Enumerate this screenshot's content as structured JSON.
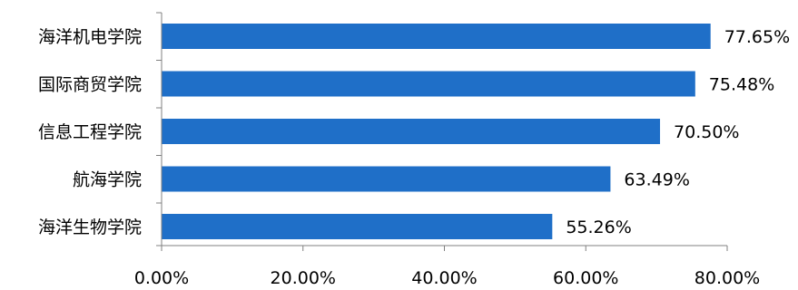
{
  "chart_data": {
    "type": "bar",
    "orientation": "horizontal",
    "categories": [
      "海洋机电学院",
      "国际商贸学院",
      "信息工程学院",
      "航海学院",
      "海洋生物学院"
    ],
    "values": [
      77.65,
      75.48,
      70.5,
      63.49,
      55.26
    ],
    "value_labels": [
      "77.65%",
      "75.48%",
      "70.50%",
      "63.49%",
      "55.26%"
    ],
    "x_ticks": [
      "0.00%",
      "20.00%",
      "40.00%",
      "60.00%",
      "80.00%"
    ],
    "xlim": [
      0,
      80
    ],
    "bar_color": "#1F6FC8",
    "grid": false,
    "legend": "none",
    "title": "",
    "xlabel": "",
    "ylabel": ""
  }
}
